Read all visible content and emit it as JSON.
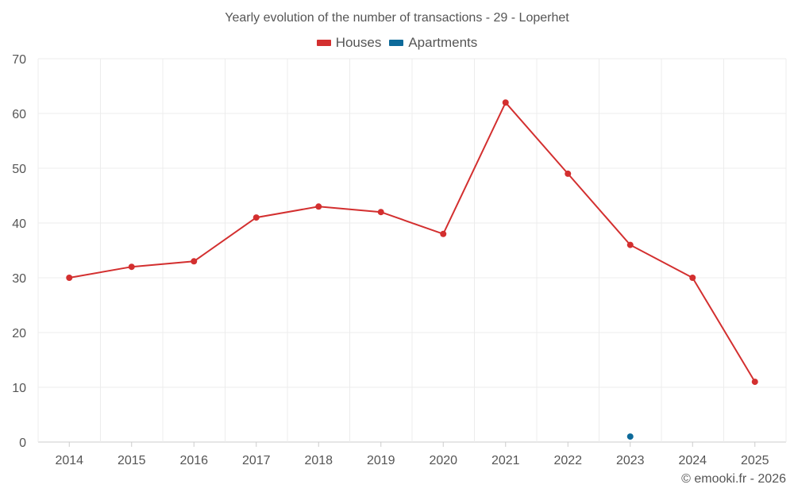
{
  "chart_data": {
    "type": "line",
    "title": "Yearly evolution of the number of transactions - 29 - Loperhet",
    "categories": [
      "2014",
      "2015",
      "2016",
      "2017",
      "2018",
      "2019",
      "2020",
      "2021",
      "2022",
      "2023",
      "2024",
      "2025"
    ],
    "series": [
      {
        "name": "Houses",
        "color": "#d32f2f",
        "values": [
          30,
          32,
          33,
          41,
          43,
          42,
          38,
          62,
          49,
          36,
          30,
          11
        ]
      },
      {
        "name": "Apartments",
        "color": "#0d6a9a",
        "values": [
          null,
          null,
          null,
          null,
          null,
          null,
          null,
          null,
          null,
          1,
          null,
          null
        ]
      }
    ],
    "ylim": [
      0,
      70
    ],
    "yticks": [
      0,
      10,
      20,
      30,
      40,
      50,
      60,
      70
    ],
    "xlabel": "",
    "ylabel": "",
    "grid": true,
    "legend_position": "top-center"
  },
  "footer": {
    "credit": "© emooki.fr - 2026"
  }
}
